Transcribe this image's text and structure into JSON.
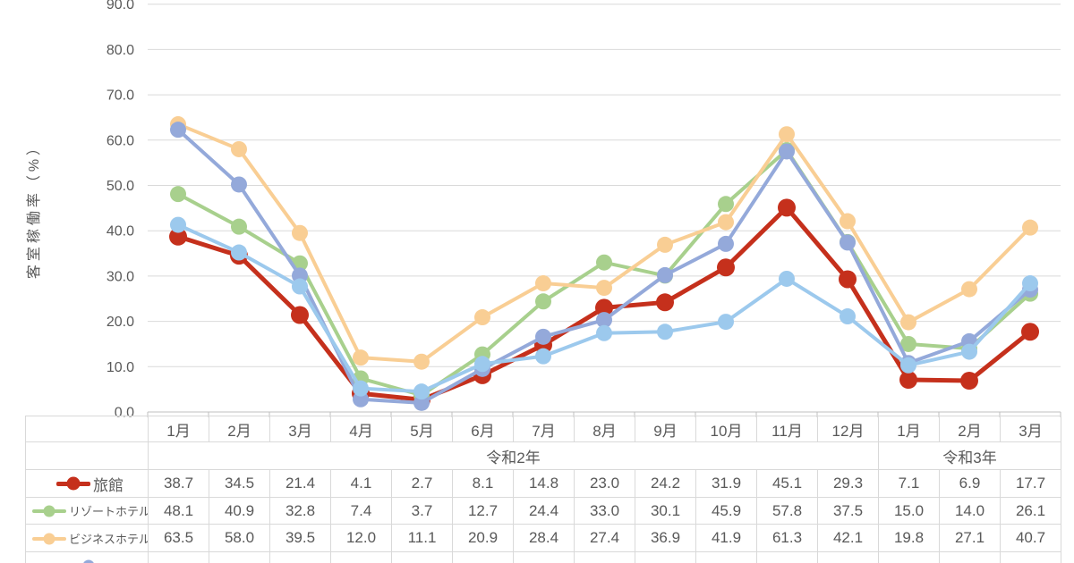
{
  "chart_data": {
    "type": "line",
    "ylabel": "客室稼働率（%）",
    "ylim": [
      0,
      90
    ],
    "grid": true,
    "legend_position": "table-left",
    "yticks": [
      {
        "value": 0,
        "label": "0.0"
      },
      {
        "value": 10,
        "label": "10.0"
      },
      {
        "value": 20,
        "label": "20.0"
      },
      {
        "value": 30,
        "label": "30.0"
      },
      {
        "value": 40,
        "label": "40.0"
      },
      {
        "value": 50,
        "label": "50.0"
      },
      {
        "value": 60,
        "label": "60.0"
      },
      {
        "value": 70,
        "label": "70.0"
      },
      {
        "value": 80,
        "label": "80.0"
      },
      {
        "value": 90,
        "label": "90.0"
      }
    ],
    "categories": [
      "1月",
      "2月",
      "3月",
      "4月",
      "5月",
      "6月",
      "7月",
      "8月",
      "9月",
      "10月",
      "11月",
      "12月",
      "1月",
      "2月",
      "3月"
    ],
    "year_groups": [
      {
        "label": "令和2年",
        "span": 12
      },
      {
        "label": "令和3年",
        "span": 3
      }
    ],
    "series": [
      {
        "name": "旅館",
        "color": "#C5301C",
        "in_table": true,
        "name_visible": true,
        "values": [
          38.7,
          34.5,
          21.4,
          4.1,
          2.7,
          8.1,
          14.8,
          23.0,
          24.2,
          31.9,
          45.1,
          29.3,
          7.1,
          6.9,
          17.7
        ]
      },
      {
        "name": "リゾートホテル",
        "color": "#A8D08D",
        "in_table": true,
        "name_visible": true,
        "values": [
          48.1,
          40.9,
          32.8,
          7.4,
          3.7,
          12.7,
          24.4,
          33.0,
          30.1,
          45.9,
          57.8,
          37.5,
          15.0,
          14.0,
          26.1
        ]
      },
      {
        "name": "ビジネスホテル",
        "color": "#F9CE94",
        "in_table": true,
        "name_visible": true,
        "values": [
          63.5,
          58.0,
          39.5,
          12.0,
          11.1,
          20.9,
          28.4,
          27.4,
          36.9,
          41.9,
          61.3,
          42.1,
          19.8,
          27.1,
          40.7
        ]
      },
      {
        "name": "",
        "color": "#94A9DA",
        "in_table": false,
        "name_visible": false,
        "estimated": true,
        "values": [
          62.3,
          50.2,
          30.1,
          2.8,
          2.0,
          9.5,
          16.6,
          20.3,
          30.2,
          37.1,
          57.5,
          37.4,
          10.8,
          15.6,
          27.0
        ]
      },
      {
        "name": "",
        "color": "#9CC9ED",
        "in_table": false,
        "name_visible": false,
        "estimated": true,
        "values": [
          41.3,
          35.2,
          27.7,
          5.2,
          4.5,
          10.6,
          12.3,
          17.4,
          17.7,
          19.9,
          29.4,
          21.1,
          10.3,
          13.3,
          28.4
        ]
      }
    ],
    "colors": {
      "grid": "#D9D9D9",
      "axis": "#BFBFBF",
      "text": "#595959",
      "table_border": "#D9D9D9"
    }
  }
}
